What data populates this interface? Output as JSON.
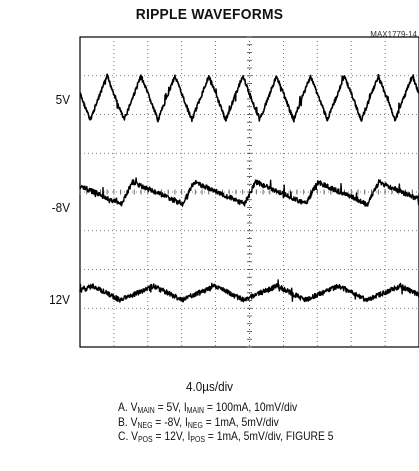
{
  "title": "RIPPLE WAVEFORMS",
  "figure_code": "MAX1779-14",
  "chart_data": {
    "type": "line",
    "title": "RIPPLE WAVEFORMS",
    "xlabel": "4.0µs/div",
    "x_divisions": 10,
    "y_divisions": 8,
    "grid": true,
    "series": [
      {
        "name": "5V",
        "channel": "A",
        "shape": "triangle",
        "cycles": 10,
        "volts_per_div": 0.01,
        "ripple_mvpp": 20
      },
      {
        "name": "-8V",
        "channel": "B",
        "shape": "sawtooth",
        "cycles": 5.5,
        "volts_per_div": 0.005,
        "ripple_mvpp": 7.5
      },
      {
        "name": "12V",
        "channel": "C",
        "shape": "sawtooth",
        "cycles": 5.5,
        "volts_per_div": 0.005,
        "ripple_mvpp": 3.5
      }
    ]
  },
  "notes": [
    {
      "label": "A. V",
      "sub1": "MAIN",
      "mid": " = 5V, I",
      "sub2": "MAIN",
      "rest": " = 100mA, 10mV/div"
    },
    {
      "label": "B. V",
      "sub1": "NEG",
      "mid": " = -8V, I",
      "sub2": "NEG",
      "rest": " = 1mA, 5mV/div"
    },
    {
      "label": "C. V",
      "sub1": "POS",
      "mid": " = 12V, I",
      "sub2": "POS",
      "rest": " = 1mA, 5mV/div, FIGURE 5"
    }
  ]
}
